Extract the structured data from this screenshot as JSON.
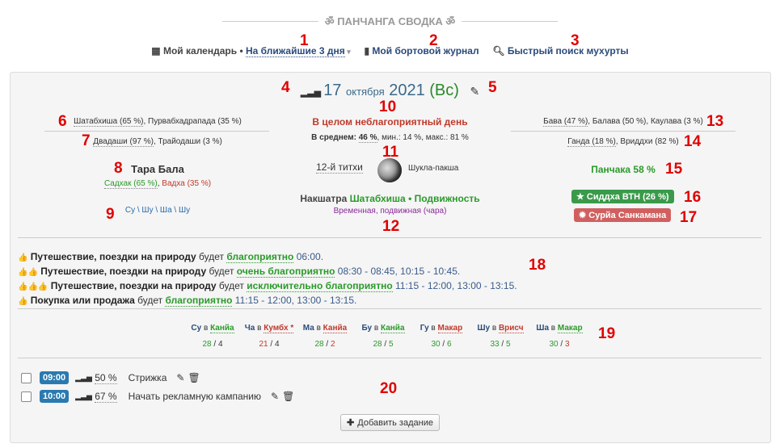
{
  "header": {
    "title": "ॐ ПАНЧАНГА СВОДКА ॐ"
  },
  "toplinks": {
    "my_calendar": "Мой календарь",
    "sep": "•",
    "range": "На ближайшие 3 дня",
    "journal": "Мой бортовой журнал",
    "search": "Быстрый поиск мухурты"
  },
  "date": {
    "day": "17",
    "month": "октября",
    "year": "2021",
    "weekday": "(Вс)"
  },
  "nakshatra_top": {
    "a": "Шатабхиша (65 %)",
    "b": "Пурвабхадрапада (35 %)",
    "dvadashi": "Двадаши (97 %)",
    "trayodashi": "Трайодаши (3 %)"
  },
  "tara": {
    "title": "Тара Бала",
    "sadhak": "Садхак (65 %)",
    "vadha": "Вадха (35 %)"
  },
  "weekdays_link": "Су \\ Шу \\ Ша \\ Шу",
  "summary": {
    "headline": "В целом неблагоприятный день",
    "avg_label": "В среднем:",
    "avg": "46 %",
    "minmax": ", мин.: 14 %, макс.: 81 %"
  },
  "tithi": {
    "label": "12-й титхи",
    "paksha": "Шукла-пакша"
  },
  "nakshatra": {
    "label": "Накшатра",
    "value": "Шатабхиша • Подвижность",
    "sub": "Временная, подвижная (чара)"
  },
  "karana": {
    "a": "Бава (47 %)",
    "b": "Балава (50 %)",
    "c": "Каулава (3 %)"
  },
  "yoga": {
    "a": "Ганда (18 %)",
    "b": "Вриддхи (82 %)"
  },
  "panchaka": "Панчака 58 %",
  "siddha": "Сиддха ВТН (26 %)",
  "surya": "Сурйа Санкамана",
  "activities": [
    {
      "thumbs": "👍",
      "name": "Путешествие, поездки на природу",
      "mid": "будет",
      "level": "благоприятно",
      "times": "06:00."
    },
    {
      "thumbs": "👍👍",
      "name": "Путешествие, поездки на природу",
      "mid": "будет",
      "level": "очень благоприятно",
      "times": "08:30 - 08:45, 10:15 - 10:45."
    },
    {
      "thumbs": "👍👍👍",
      "name": "Путешествие, поездки на природу",
      "mid": "будет",
      "level": "исключительно благоприятно",
      "times": "11:15 - 12:00, 13:00 - 13:15."
    },
    {
      "thumbs": "👍",
      "name": "Покупка или продажа",
      "mid": "будет",
      "level": "благоприятно",
      "times": "11:15 - 12:00, 13:00 - 13:15."
    }
  ],
  "days": [
    {
      "d": "Су",
      "in": "в",
      "sign": "Канйа",
      "sign_color": "#2a9a2a",
      "a": "28",
      "b": "4",
      "a_color": "#2a9a2a",
      "b_color": "#333"
    },
    {
      "d": "Ча",
      "in": "в",
      "sign": "Кумбх *",
      "sign_color": "#c0392b",
      "a": "21",
      "b": "4",
      "a_color": "#c0392b",
      "b_color": "#333"
    },
    {
      "d": "Ма",
      "in": "в",
      "sign": "Канйа",
      "sign_color": "#c0392b",
      "a": "28",
      "b": "2",
      "a_color": "#2a9a2a",
      "b_color": "#c0392b"
    },
    {
      "d": "Бу",
      "in": "в",
      "sign": "Канйа",
      "sign_color": "#2a9a2a",
      "a": "28",
      "b": "5",
      "a_color": "#2a9a2a",
      "b_color": "#2a9a2a"
    },
    {
      "d": "Гу",
      "in": "в",
      "sign": "Макар",
      "sign_color": "#c0392b",
      "a": "30",
      "b": "6",
      "a_color": "#2a9a2a",
      "b_color": "#2a9a2a"
    },
    {
      "d": "Шу",
      "in": "в",
      "sign": "Врисч",
      "sign_color": "#c0392b",
      "a": "33",
      "b": "5",
      "a_color": "#2a9a2a",
      "b_color": "#2a9a2a"
    },
    {
      "d": "Ша",
      "in": "в",
      "sign": "Макар",
      "sign_color": "#2a9a2a",
      "a": "30",
      "b": "3",
      "a_color": "#2a9a2a",
      "b_color": "#c0392b"
    }
  ],
  "tasks": [
    {
      "time": "09:00",
      "pct": "50 %",
      "name": "Стрижка"
    },
    {
      "time": "10:00",
      "pct": "67 %",
      "name": "Начать рекламную кампанию"
    }
  ],
  "add_task": "Добавить задание",
  "markers": [
    "1",
    "2",
    "3",
    "4",
    "5",
    "6",
    "7",
    "8",
    "9",
    "10",
    "11",
    "12",
    "13",
    "14",
    "15",
    "16",
    "17",
    "18",
    "19",
    "20"
  ]
}
